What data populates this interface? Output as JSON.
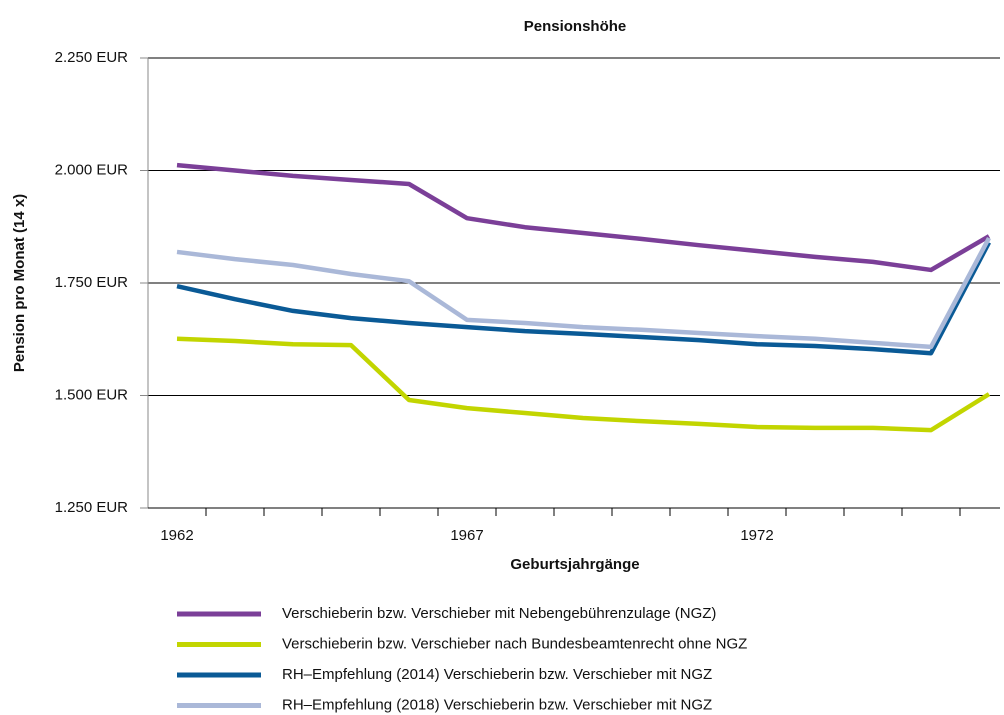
{
  "chart_data": {
    "type": "line",
    "title": "Pensionshöhe",
    "x_label": "Geburtsjahrgänge",
    "y_label": "Pension pro Monat (14 x)",
    "categories": [
      "1962",
      null,
      null,
      null,
      null,
      "1967",
      null,
      null,
      null,
      null,
      "1972",
      null,
      null,
      null,
      null
    ],
    "series": [
      {
        "name": "Verschieberin bzw. Verschieber mit Nebengebührenzulage (NGZ)",
        "color": "#7b3f98",
        "values": [
          2012,
          2000,
          1988,
          1979,
          1970,
          1894,
          1874,
          1861,
          1848,
          1834,
          1821,
          1808,
          1797,
          1779,
          1854
        ]
      },
      {
        "name": "Verschieberin bzw. Verschieber nach Bundesbeamtenrecht ohne NGZ",
        "color": "#c2d500",
        "values": [
          1626,
          1621,
          1614,
          1612,
          1490,
          1472,
          1461,
          1450,
          1443,
          1437,
          1430,
          1428,
          1428,
          1423,
          1503
        ]
      },
      {
        "name": "RH–Empfehlung (2014) Verschieberin bzw. Verschieber mit NGZ",
        "color": "#0a5a96",
        "values": [
          1743,
          1714,
          1688,
          1672,
          1661,
          1652,
          1643,
          1637,
          1630,
          1623,
          1614,
          1610,
          1603,
          1594,
          1840
        ]
      },
      {
        "name": "RH–Empfehlung (2018) Verschieberin bzw. Verschieber mit NGZ",
        "color": "#aab8d8",
        "values": [
          1819,
          1803,
          1790,
          1770,
          1754,
          1668,
          1661,
          1652,
          1646,
          1639,
          1632,
          1626,
          1617,
          1608,
          1850
        ]
      }
    ],
    "ylim": [
      1250,
      2250
    ],
    "yticks": [
      {
        "value": 1250,
        "label": "1.250 EUR"
      },
      {
        "value": 1500,
        "label": "1.500 EUR"
      },
      {
        "value": 1750,
        "label": "1.750 EUR"
      },
      {
        "value": 2000,
        "label": "2.000 EUR"
      },
      {
        "value": 2250,
        "label": "2.250 EUR"
      }
    ],
    "grid": true,
    "legend": "bottom"
  }
}
